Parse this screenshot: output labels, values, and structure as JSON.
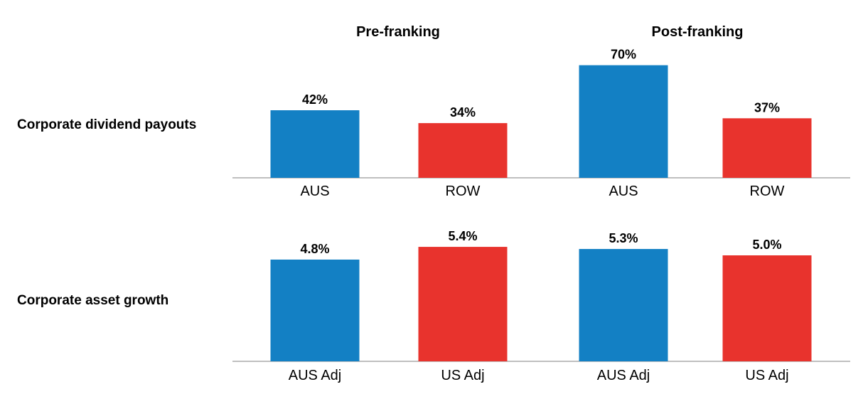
{
  "chart_data": {
    "type": "bar",
    "column_headers": [
      "Pre-franking",
      "Post-franking"
    ],
    "panels": [
      {
        "row_label": "Corporate dividend payouts",
        "ylim": [
          0,
          80
        ],
        "unit": "%",
        "groups": [
          {
            "header": "Pre-franking",
            "bars": [
              {
                "category": "AUS",
                "value": 42,
                "label": "42%",
                "color": "#1380C4"
              },
              {
                "category": "ROW",
                "value": 34,
                "label": "34%",
                "color": "#E8332D"
              }
            ]
          },
          {
            "header": "Post-franking",
            "bars": [
              {
                "category": "AUS",
                "value": 70,
                "label": "70%",
                "color": "#1380C4"
              },
              {
                "category": "ROW",
                "value": 37,
                "label": "37%",
                "color": "#E8332D"
              }
            ]
          }
        ]
      },
      {
        "row_label": "Corporate asset growth",
        "ylim": [
          0,
          6
        ],
        "unit": "%",
        "groups": [
          {
            "header": "Pre-franking",
            "bars": [
              {
                "category": "AUS Adj",
                "value": 4.8,
                "label": "4.8%",
                "color": "#1380C4"
              },
              {
                "category": "US Adj",
                "value": 5.4,
                "label": "5.4%",
                "color": "#E8332D"
              }
            ]
          },
          {
            "header": "Post-franking",
            "bars": [
              {
                "category": "AUS Adj",
                "value": 5.3,
                "label": "5.3%",
                "color": "#1380C4"
              },
              {
                "category": "US Adj",
                "value": 5.0,
                "label": "5.0%",
                "color": "#E8332D"
              }
            ]
          }
        ]
      }
    ],
    "grid": false,
    "legend": "none"
  }
}
